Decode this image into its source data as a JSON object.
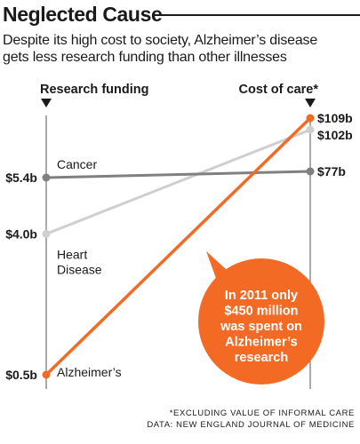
{
  "title": "Neglected Cause",
  "subtitle_lines": [
    "Despite its high cost to society, Alzheimer’s disease",
    "gets less research funding than other illnesses"
  ],
  "footnote": "*EXCLUDING VALUE OF INFORMAL CARE",
  "source": "DATA: NEW ENGLAND JOURNAL OF MEDICINE",
  "colors": {
    "alzheimers": "#f26a24",
    "cancer": "#808080",
    "heart_disease": "#cfcfcf",
    "axis": "#555555",
    "text": "#1a1a1a"
  },
  "chart_data": {
    "type": "slope",
    "left_axis": {
      "label": "Research funding",
      "unit": "b",
      "prefix": "$",
      "marker": "down-triangle-icon"
    },
    "right_axis": {
      "label": "Cost of care*",
      "unit": "b",
      "prefix": "$",
      "marker": "down-triangle-icon"
    },
    "series": [
      {
        "name": "Cancer",
        "name_lines": [
          "Cancer"
        ],
        "left_value": 5.4,
        "right_value": 77,
        "left_label": "$5.4b",
        "right_label": "$77b",
        "color": "#808080"
      },
      {
        "name": "Heart Disease",
        "name_lines": [
          "Heart",
          "Disease"
        ],
        "left_value": 4.0,
        "right_value": 102,
        "left_label": "$4.0b",
        "right_label": "$102b",
        "color": "#cfcfcf"
      },
      {
        "name": "Alzheimer’s",
        "name_lines": [
          "Alzheimer’s"
        ],
        "left_value": 0.5,
        "right_value": 109,
        "left_label": "$0.5b",
        "right_label": "$109b",
        "color": "#f26a24"
      }
    ],
    "left_range": [
      0.5,
      5.4
    ],
    "right_range": [
      77,
      109
    ],
    "annotation": {
      "lines": [
        "In 2011 only",
        "$450 million",
        "was spent on",
        "Alzheimer’s",
        "research"
      ],
      "color": "#f26a24"
    }
  }
}
